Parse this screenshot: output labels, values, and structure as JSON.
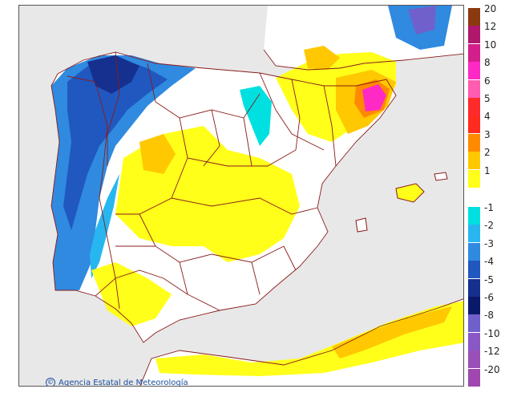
{
  "credit": {
    "symbol": "©",
    "text": "Agencia Estatal de Meteorología"
  },
  "colors": {
    "background_sea": "#e8e8e8",
    "land": "#ffffff",
    "border": "#8b1a1a"
  },
  "legend": {
    "top_labels": [
      "20",
      "12",
      "10",
      "8",
      "6",
      "5",
      "4",
      "3",
      "2",
      "1"
    ],
    "top_colors": [
      "#8b3a0f",
      "#b0186e",
      "#d41e8c",
      "#ff29c6",
      "#ff5bb0",
      "#ff2a2a",
      "#ff2b1e",
      "#ff8a00",
      "#ffc800",
      "#ffff1a"
    ],
    "bottom_labels": [
      "-1",
      "-2",
      "-3",
      "-4",
      "-5",
      "-6",
      "-8",
      "-10",
      "-12",
      "-20"
    ],
    "bottom_colors": [
      "#00e0e0",
      "#28b6f0",
      "#2f8ae0",
      "#2058c0",
      "#15308e",
      "#0a1a6a",
      "#7060cc",
      "#8a58c4",
      "#9a50b8",
      "#a048b0"
    ]
  }
}
